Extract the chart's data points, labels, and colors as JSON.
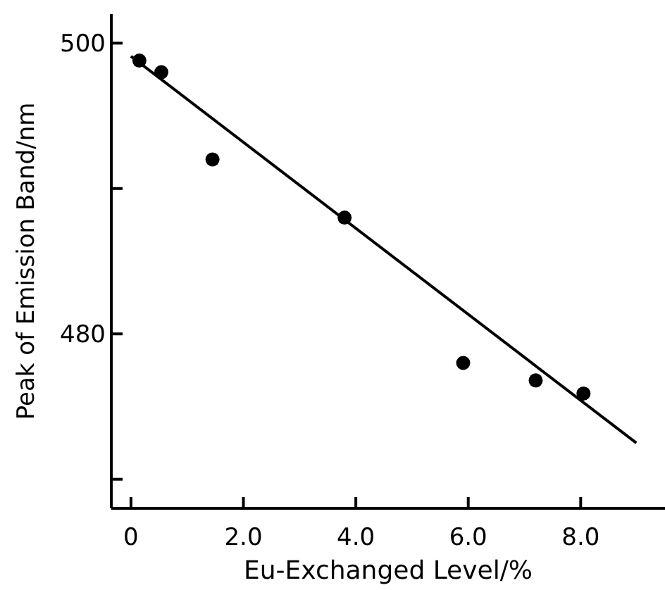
{
  "chart_data": {
    "type": "scatter",
    "xlabel": "Eu-Exchanged Level/%",
    "ylabel": "Peak of Emission Band/nm",
    "xlim": [
      -0.35,
      9.5
    ],
    "ylim": [
      468,
      502
    ],
    "xticks": [
      {
        "value": 0,
        "label": "0"
      },
      {
        "value": 2,
        "label": "2.0"
      },
      {
        "value": 4,
        "label": "4.0"
      },
      {
        "value": 6,
        "label": "6.0"
      },
      {
        "value": 8,
        "label": "8.0"
      }
    ],
    "yticks": [
      {
        "value": 470,
        "label": null
      },
      480,
      {
        "value": 490,
        "label": null
      },
      500
    ],
    "grid": false,
    "series": [
      {
        "color": "#000000",
        "marker": "circle",
        "x": [
          0.15,
          0.54,
          1.45,
          3.8,
          5.91,
          7.2,
          8.05
        ],
        "values": [
          498.8,
          498,
          492,
          488,
          478,
          476.8,
          475.9
        ]
      },
      {
        "type": "line",
        "color": "#000000",
        "marker": "none",
        "line_style": "solid",
        "x": [
          0,
          8.99
        ],
        "values": [
          499.1,
          472.5
        ]
      }
    ]
  }
}
